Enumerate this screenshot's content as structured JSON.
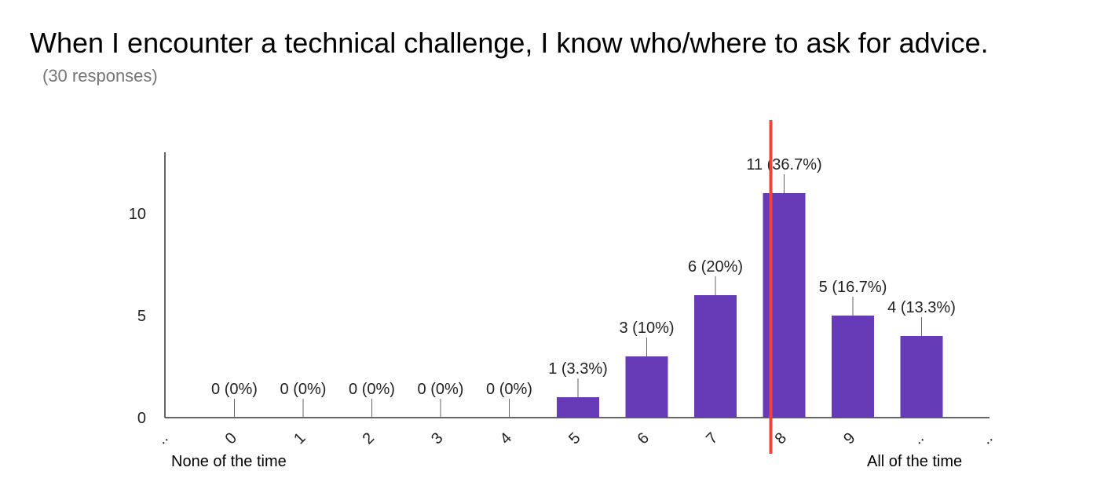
{
  "title": "When I encounter a technical challenge, I know who/where to ask for advice.",
  "subtitle": "(30 responses)",
  "scale_labels": {
    "low": "None of the time",
    "high": "All of the time"
  },
  "colors": {
    "bar": "#673ab7",
    "marker": "#f44336",
    "axis": "#333333",
    "text": "#222222"
  },
  "chart_data": {
    "type": "bar",
    "categories": [
      "..",
      "0",
      "1",
      "2",
      "3",
      "4",
      "5",
      "6",
      "7",
      "8",
      "9",
      "..",
      ".."
    ],
    "values": [
      null,
      0,
      0,
      0,
      0,
      0,
      1,
      3,
      6,
      11,
      5,
      4,
      null
    ],
    "data_labels": [
      null,
      "0 (0%)",
      "0 (0%)",
      "0 (0%)",
      "0 (0%)",
      "0 (0%)",
      "1 (3.3%)",
      "3 (10%)",
      "6 (20%)",
      "11 (36.7%)",
      "5 (16.7%)",
      "4 (13.3%)",
      null
    ],
    "yticks": [
      0,
      5,
      10
    ],
    "ylim": [
      0,
      13
    ],
    "grid": false,
    "reference_line": {
      "x": 8
    }
  }
}
